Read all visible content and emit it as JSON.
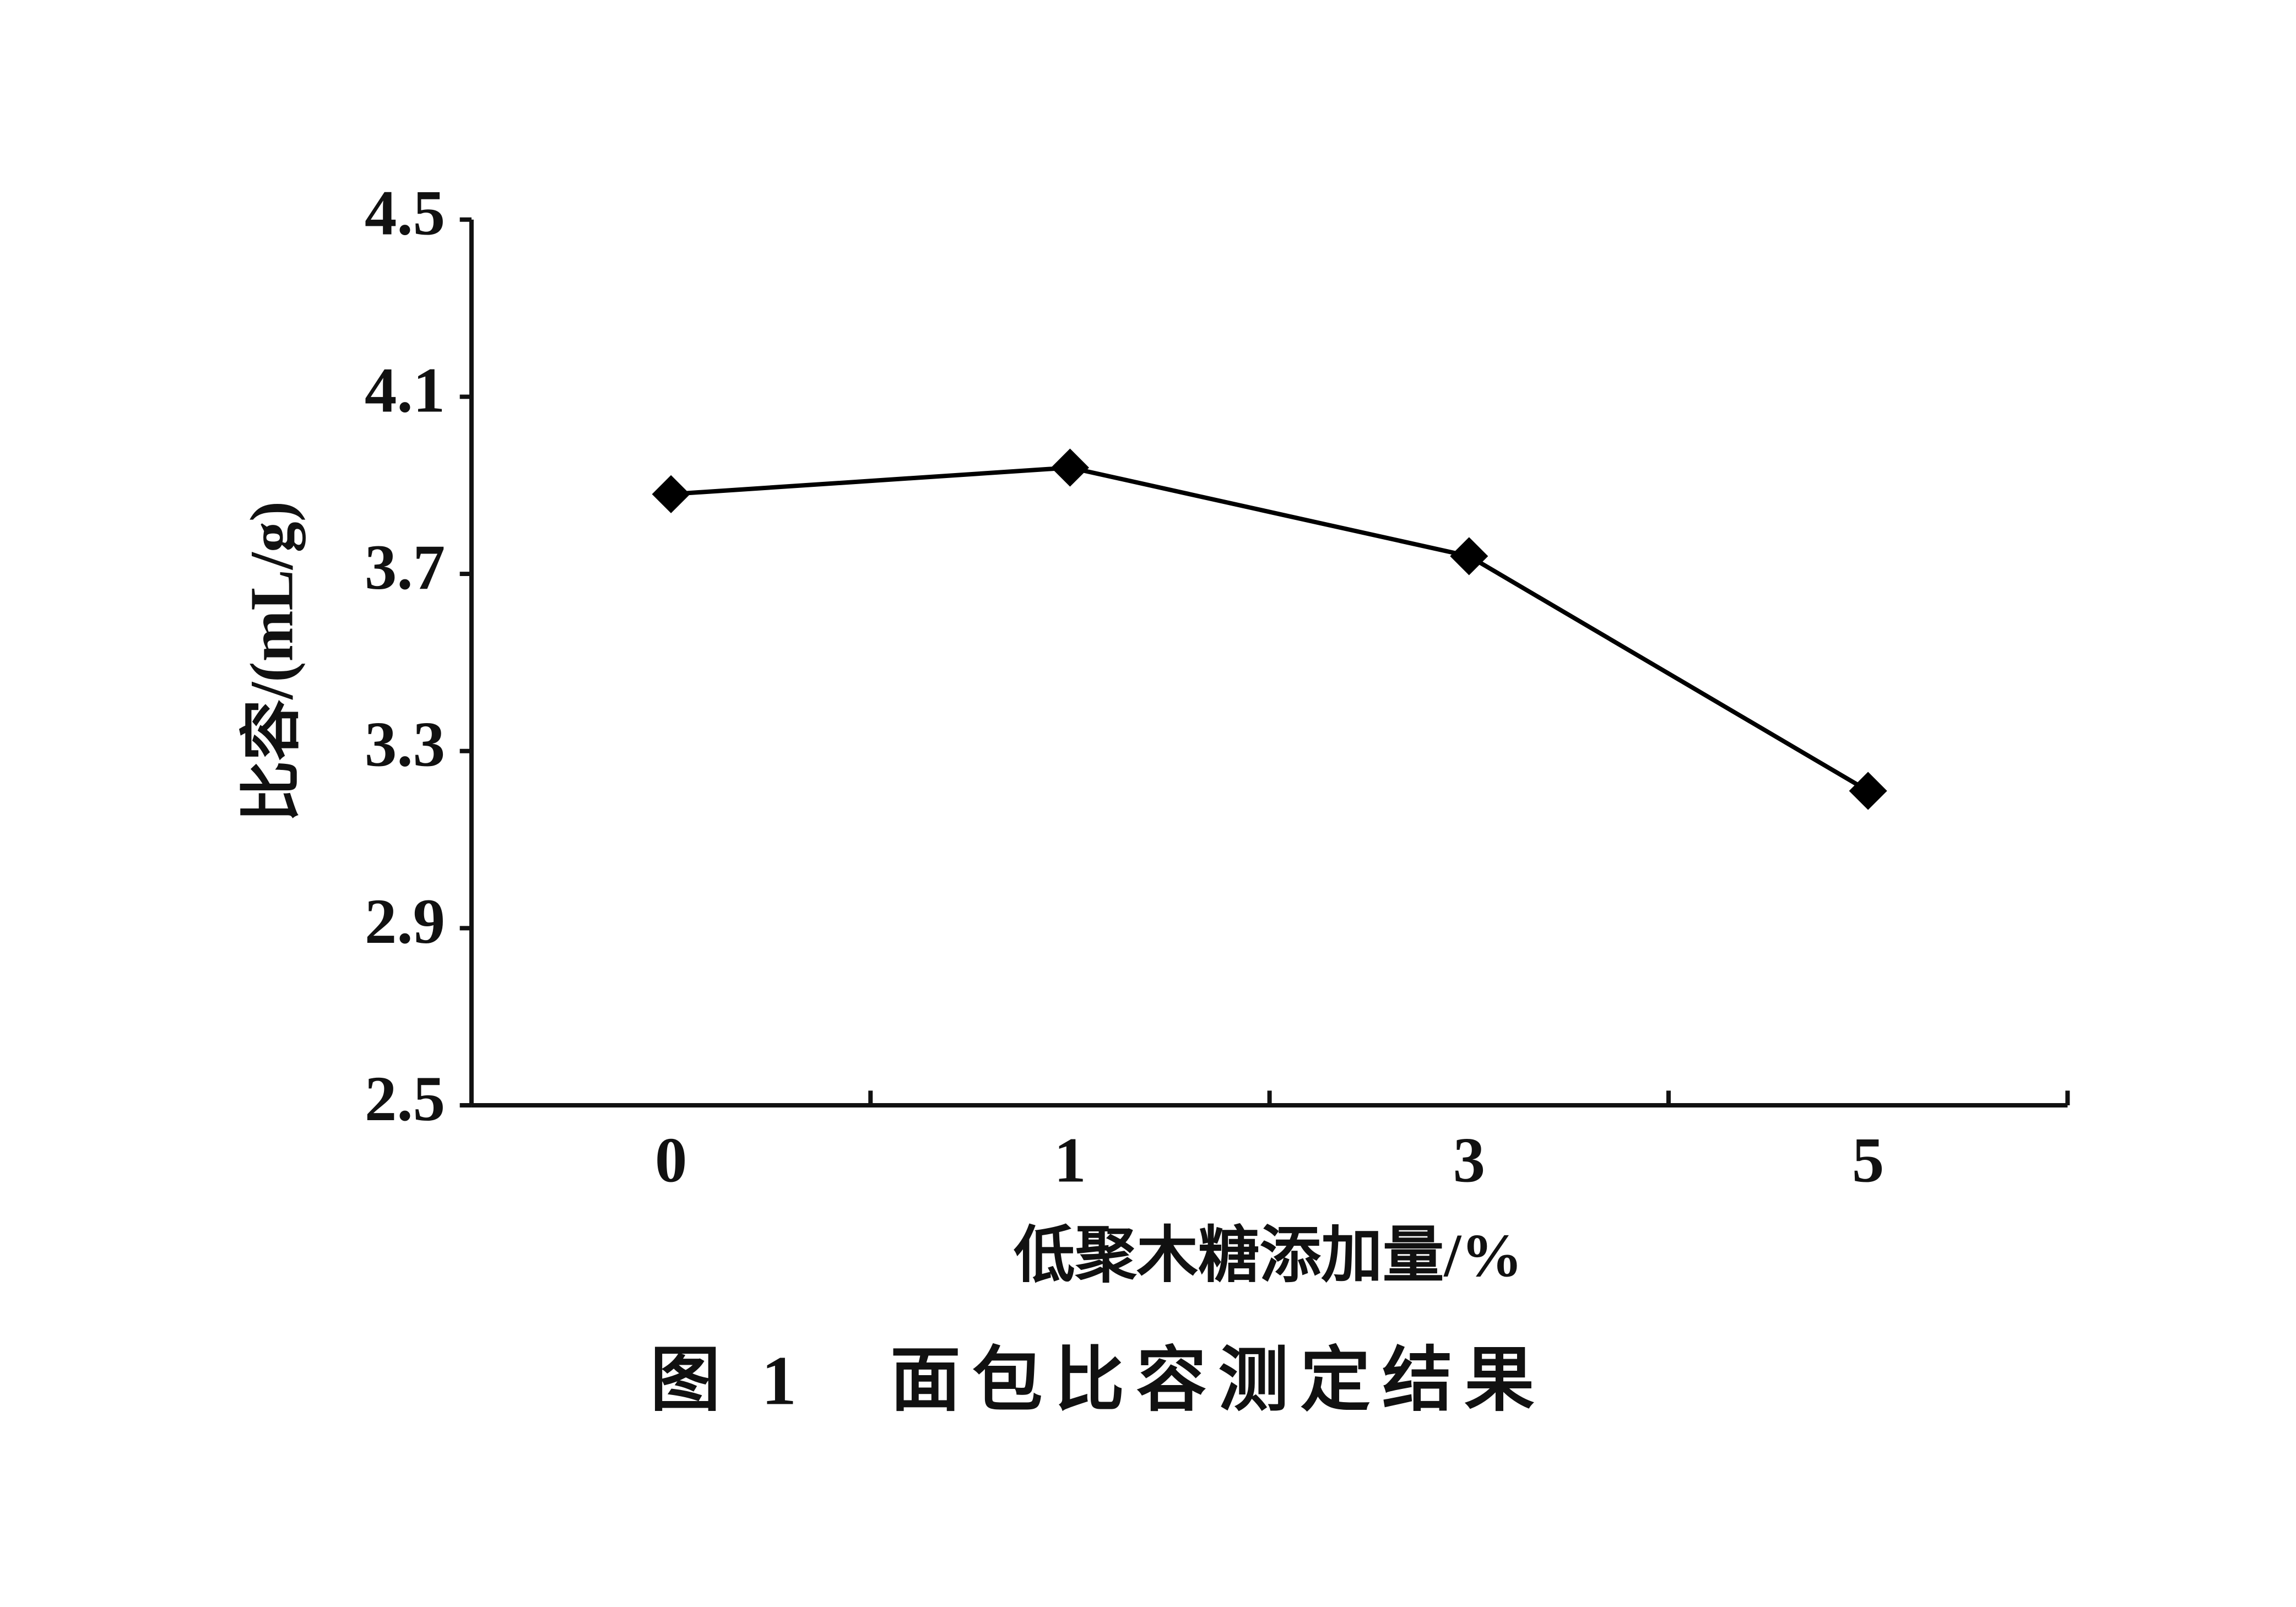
{
  "chart_data": {
    "type": "line",
    "title": "图 1　面包比容测定结果",
    "x_label": "低聚木糖添加量/%",
    "y_label": "比容/(mL/g)",
    "categories": [
      "0",
      "1",
      "3",
      "5"
    ],
    "series": [
      {
        "name": null,
        "color": "#000000",
        "values": [
          3.88,
          3.94,
          3.74,
          3.21
        ]
      }
    ],
    "ylim": [
      2.5,
      4.5
    ],
    "yticks": [
      2.5,
      2.9,
      3.3,
      3.7,
      4.1,
      4.5
    ],
    "grid": false
  }
}
